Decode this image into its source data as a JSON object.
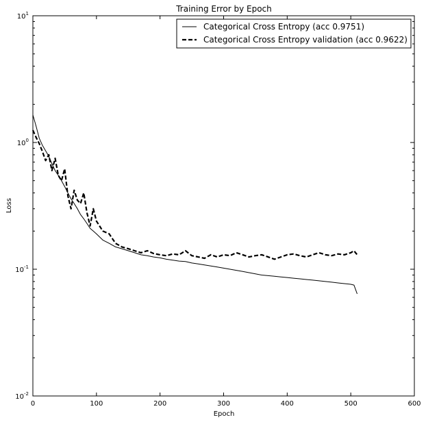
{
  "chart_data": {
    "type": "line",
    "title": "Training Error by Epoch",
    "xlabel": "Epoch",
    "ylabel": "Loss",
    "xlim": [
      0,
      600
    ],
    "ylim": [
      0.01,
      10
    ],
    "yscale": "log",
    "grid": false,
    "legend_position": "top-right",
    "x_ticks": [
      0,
      100,
      200,
      300,
      400,
      500,
      600
    ],
    "y_ticks": [
      {
        "value": 0.01,
        "base": "10",
        "exp": "-2"
      },
      {
        "value": 0.1,
        "base": "10",
        "exp": "-1"
      },
      {
        "value": 1,
        "base": "10",
        "exp": "0"
      },
      {
        "value": 10,
        "base": "10",
        "exp": "1"
      }
    ],
    "series": [
      {
        "name": "Categorical Cross Entropy (acc 0.9751)",
        "style": "solid",
        "color": "#000000",
        "x": [
          0,
          5,
          10,
          15,
          20,
          25,
          30,
          35,
          40,
          45,
          50,
          55,
          60,
          65,
          70,
          75,
          80,
          85,
          90,
          95,
          100,
          110,
          120,
          130,
          140,
          150,
          160,
          170,
          180,
          190,
          200,
          210,
          220,
          230,
          240,
          250,
          260,
          270,
          280,
          290,
          300,
          310,
          320,
          330,
          340,
          350,
          360,
          370,
          380,
          390,
          400,
          410,
          420,
          430,
          440,
          450,
          460,
          470,
          480,
          490,
          500,
          505,
          510
        ],
        "y": [
          1.65,
          1.35,
          1.08,
          0.95,
          0.86,
          0.78,
          0.68,
          0.6,
          0.55,
          0.5,
          0.45,
          0.4,
          0.36,
          0.33,
          0.3,
          0.27,
          0.25,
          0.23,
          0.21,
          0.2,
          0.19,
          0.17,
          0.16,
          0.15,
          0.145,
          0.14,
          0.135,
          0.13,
          0.128,
          0.125,
          0.123,
          0.12,
          0.118,
          0.116,
          0.115,
          0.112,
          0.11,
          0.108,
          0.106,
          0.104,
          0.102,
          0.1,
          0.098,
          0.096,
          0.094,
          0.092,
          0.09,
          0.089,
          0.088,
          0.087,
          0.086,
          0.085,
          0.084,
          0.083,
          0.082,
          0.081,
          0.08,
          0.079,
          0.078,
          0.077,
          0.076,
          0.075,
          0.064
        ]
      },
      {
        "name": "Categorical Cross Entropy validation (acc 0.9622)",
        "style": "dashed",
        "color": "#000000",
        "x": [
          0,
          5,
          10,
          15,
          20,
          25,
          30,
          35,
          40,
          45,
          50,
          55,
          60,
          65,
          70,
          75,
          80,
          85,
          90,
          95,
          100,
          110,
          120,
          130,
          140,
          150,
          160,
          170,
          180,
          190,
          200,
          210,
          220,
          230,
          240,
          250,
          260,
          270,
          280,
          290,
          300,
          310,
          320,
          330,
          340,
          350,
          360,
          370,
          380,
          390,
          400,
          410,
          420,
          430,
          440,
          450,
          460,
          470,
          480,
          490,
          500,
          505,
          510
        ],
        "y": [
          1.25,
          1.1,
          0.98,
          0.85,
          0.72,
          0.8,
          0.6,
          0.75,
          0.55,
          0.5,
          0.62,
          0.38,
          0.3,
          0.42,
          0.35,
          0.33,
          0.4,
          0.28,
          0.22,
          0.3,
          0.24,
          0.2,
          0.19,
          0.16,
          0.15,
          0.145,
          0.14,
          0.135,
          0.14,
          0.133,
          0.13,
          0.128,
          0.132,
          0.13,
          0.14,
          0.128,
          0.125,
          0.122,
          0.13,
          0.125,
          0.13,
          0.128,
          0.135,
          0.13,
          0.125,
          0.128,
          0.13,
          0.125,
          0.12,
          0.125,
          0.13,
          0.132,
          0.128,
          0.125,
          0.13,
          0.135,
          0.13,
          0.128,
          0.132,
          0.13,
          0.135,
          0.14,
          0.13
        ]
      }
    ]
  }
}
